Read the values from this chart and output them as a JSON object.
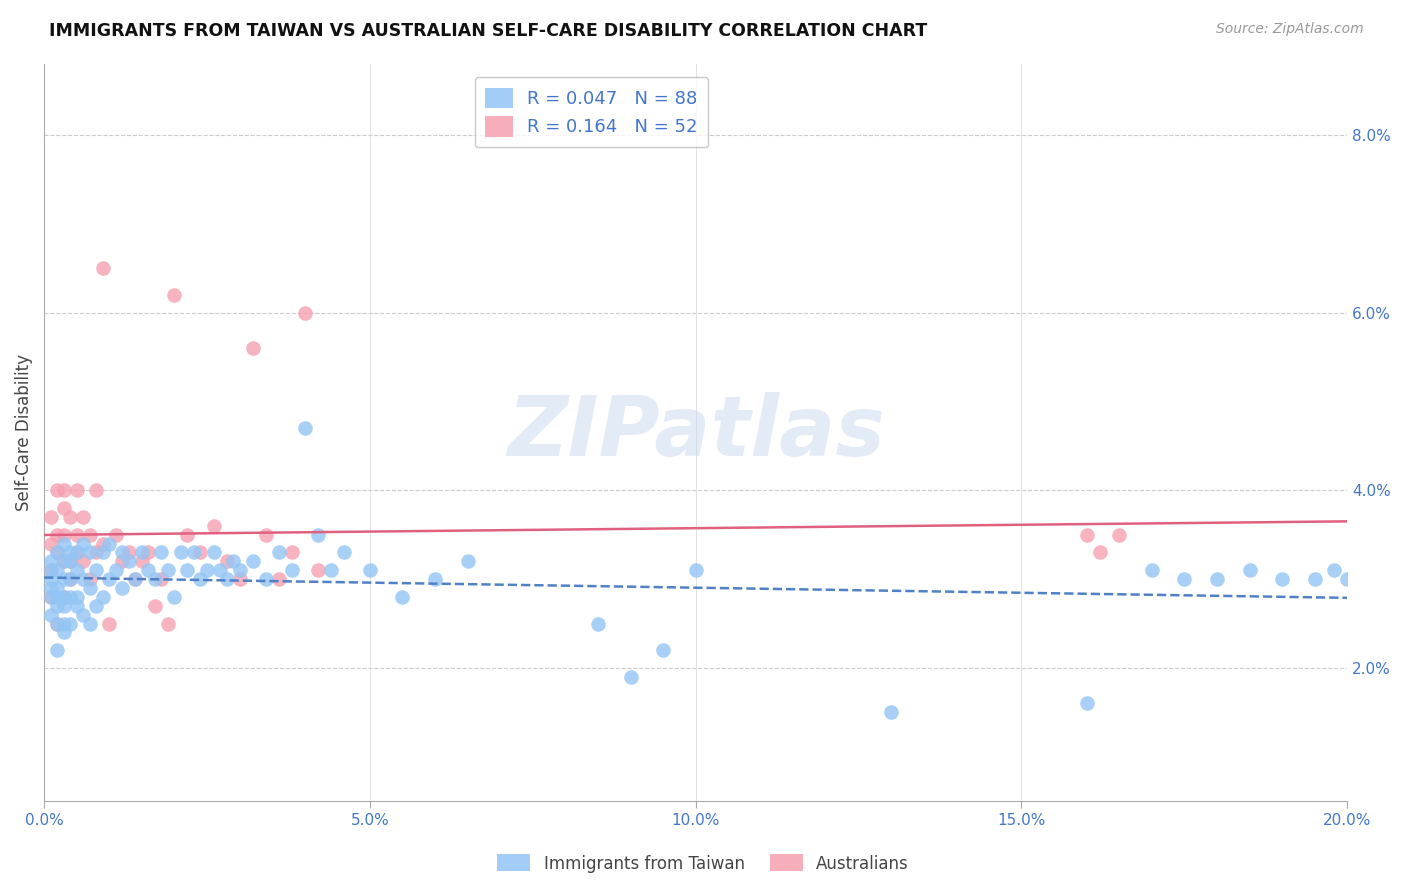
{
  "title": "IMMIGRANTS FROM TAIWAN VS AUSTRALIAN SELF-CARE DISABILITY CORRELATION CHART",
  "source": "Source: ZipAtlas.com",
  "xlabel_ticks": [
    "0.0%",
    "5.0%",
    "10.0%",
    "15.0%",
    "20.0%"
  ],
  "xlabel_vals": [
    0.0,
    0.05,
    0.1,
    0.15,
    0.2
  ],
  "ylabel_ticks": [
    "2.0%",
    "4.0%",
    "6.0%",
    "8.0%"
  ],
  "ylabel_vals": [
    0.02,
    0.04,
    0.06,
    0.08
  ],
  "xlim": [
    0.0,
    0.2
  ],
  "ylim": [
    0.005,
    0.088
  ],
  "ylabel": "Self-Care Disability",
  "legend_labels": [
    "Immigrants from Taiwan",
    "Australians"
  ],
  "blue_R": 0.047,
  "blue_N": 88,
  "pink_R": 0.164,
  "pink_N": 52,
  "blue_color": "#92c5f5",
  "pink_color": "#f5a0b0",
  "trendline_blue_color": "#5080c8",
  "trendline_pink_color": "#e06080",
  "watermark": "ZIPatlas",
  "blue_scatter_x": [
    0.001,
    0.001,
    0.001,
    0.001,
    0.001,
    0.001,
    0.002,
    0.002,
    0.002,
    0.002,
    0.002,
    0.002,
    0.002,
    0.003,
    0.003,
    0.003,
    0.003,
    0.003,
    0.003,
    0.003,
    0.004,
    0.004,
    0.004,
    0.004,
    0.004,
    0.005,
    0.005,
    0.005,
    0.005,
    0.006,
    0.006,
    0.006,
    0.007,
    0.007,
    0.007,
    0.008,
    0.008,
    0.009,
    0.009,
    0.01,
    0.01,
    0.011,
    0.012,
    0.012,
    0.013,
    0.014,
    0.015,
    0.016,
    0.017,
    0.018,
    0.019,
    0.02,
    0.021,
    0.022,
    0.023,
    0.024,
    0.025,
    0.026,
    0.027,
    0.028,
    0.029,
    0.03,
    0.032,
    0.034,
    0.036,
    0.038,
    0.04,
    0.042,
    0.044,
    0.046,
    0.05,
    0.055,
    0.06,
    0.065,
    0.085,
    0.09,
    0.095,
    0.1,
    0.13,
    0.16,
    0.17,
    0.175,
    0.18,
    0.185,
    0.19,
    0.195,
    0.198,
    0.2
  ],
  "blue_scatter_y": [
    0.03,
    0.028,
    0.032,
    0.026,
    0.031,
    0.029,
    0.027,
    0.031,
    0.029,
    0.025,
    0.033,
    0.028,
    0.022,
    0.03,
    0.032,
    0.028,
    0.025,
    0.034,
    0.027,
    0.024,
    0.03,
    0.032,
    0.028,
    0.025,
    0.033,
    0.031,
    0.027,
    0.033,
    0.028,
    0.03,
    0.034,
    0.026,
    0.029,
    0.025,
    0.033,
    0.031,
    0.027,
    0.033,
    0.028,
    0.03,
    0.034,
    0.031,
    0.033,
    0.029,
    0.032,
    0.03,
    0.033,
    0.031,
    0.03,
    0.033,
    0.031,
    0.028,
    0.033,
    0.031,
    0.033,
    0.03,
    0.031,
    0.033,
    0.031,
    0.03,
    0.032,
    0.031,
    0.032,
    0.03,
    0.033,
    0.031,
    0.047,
    0.035,
    0.031,
    0.033,
    0.031,
    0.028,
    0.03,
    0.032,
    0.025,
    0.019,
    0.022,
    0.031,
    0.015,
    0.016,
    0.031,
    0.03,
    0.03,
    0.031,
    0.03,
    0.03,
    0.031,
    0.03
  ],
  "pink_scatter_x": [
    0.001,
    0.001,
    0.001,
    0.001,
    0.002,
    0.002,
    0.002,
    0.002,
    0.003,
    0.003,
    0.003,
    0.003,
    0.003,
    0.004,
    0.004,
    0.004,
    0.005,
    0.005,
    0.005,
    0.006,
    0.006,
    0.007,
    0.007,
    0.008,
    0.008,
    0.009,
    0.009,
    0.01,
    0.011,
    0.012,
    0.013,
    0.014,
    0.015,
    0.016,
    0.017,
    0.018,
    0.019,
    0.02,
    0.022,
    0.024,
    0.026,
    0.028,
    0.03,
    0.032,
    0.034,
    0.036,
    0.038,
    0.04,
    0.042,
    0.16,
    0.162,
    0.165
  ],
  "pink_scatter_y": [
    0.028,
    0.034,
    0.037,
    0.031,
    0.035,
    0.04,
    0.025,
    0.033,
    0.035,
    0.032,
    0.04,
    0.028,
    0.038,
    0.03,
    0.032,
    0.037,
    0.035,
    0.04,
    0.033,
    0.037,
    0.032,
    0.03,
    0.035,
    0.033,
    0.04,
    0.034,
    0.065,
    0.025,
    0.035,
    0.032,
    0.033,
    0.03,
    0.032,
    0.033,
    0.027,
    0.03,
    0.025,
    0.062,
    0.035,
    0.033,
    0.036,
    0.032,
    0.03,
    0.056,
    0.035,
    0.03,
    0.033,
    0.06,
    0.031,
    0.035,
    0.033,
    0.035
  ]
}
